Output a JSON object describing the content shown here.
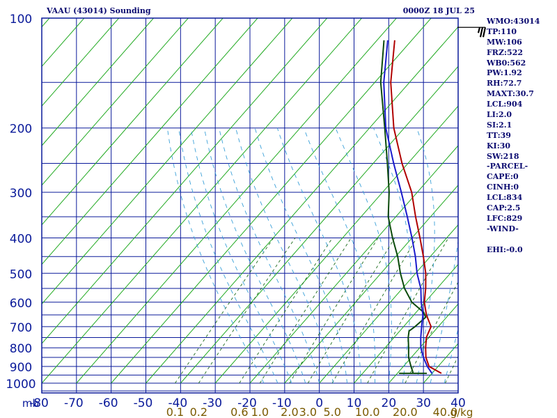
{
  "header": {
    "title": "VAAU (43014) Sounding",
    "timestamp": "0000Z 18 JUL 25"
  },
  "stats": [
    "WMO:43014",
    "TP:110",
    "MW:106",
    "FRZ:522",
    "WB0:562",
    "PW:1.92",
    "RH:72.7",
    "MAXT:30.7",
    "LCL:904",
    "LI:2.0",
    "SI:2.1",
    "TT:39",
    "KI:30",
    "SW:218",
    "-PARCEL-",
    "CAPE:0",
    "CINH:0",
    "LCL:834",
    "CAP:2.5",
    "LFC:829",
    "-WIND-",
    "",
    "EHI:-0.0"
  ],
  "colors": {
    "grid": "#0a1a9a",
    "isotherm": "#22aa22",
    "mixing": "#1a6a1a",
    "moist": "#3aa0d8",
    "temperature": "#b00000",
    "dewpoint": "#0b4a0b",
    "parcel": "#1a1acc",
    "wind": "#000000",
    "mixlabel": "#7a5a00"
  },
  "chart_data": {
    "type": "line",
    "title": "VAAU (43014) Sounding",
    "pressure_axis": {
      "unit": "mb",
      "ticks": [
        100,
        200,
        300,
        400,
        500,
        600,
        700,
        800,
        900,
        1000
      ],
      "range": [
        100,
        1050
      ],
      "scale": "log"
    },
    "temperature_axis": {
      "unit": "°C",
      "ticks": [
        -80,
        -70,
        -60,
        -50,
        -40,
        -30,
        -20,
        -10,
        0,
        10,
        20,
        30,
        40
      ],
      "range": [
        -80,
        40
      ]
    },
    "mixing_ratio_axis": {
      "unit": "g/kg",
      "ticks": [
        0.1,
        0.2,
        0.6,
        1.0,
        2.0,
        3.0,
        5.0,
        10.0,
        20.0,
        40.0
      ]
    },
    "series": [
      {
        "name": "temperature",
        "points": [
          [
            940,
            32.7
          ],
          [
            900,
            27.4
          ],
          [
            850,
            24.2
          ],
          [
            800,
            21.7
          ],
          [
            750,
            19.3
          ],
          [
            700,
            17.9
          ],
          [
            650,
            13.6
          ],
          [
            600,
            9.8
          ],
          [
            550,
            6.7
          ],
          [
            500,
            2.9
          ],
          [
            450,
            -2.0
          ],
          [
            400,
            -7.7
          ],
          [
            350,
            -14.3
          ],
          [
            300,
            -21.6
          ],
          [
            250,
            -31.7
          ],
          [
            200,
            -43.0
          ],
          [
            150,
            -55.4
          ],
          [
            115,
            -64.9
          ]
        ]
      },
      {
        "name": "dewpoint",
        "points": [
          [
            940,
            24.5
          ],
          [
            930,
            24.0
          ],
          [
            900,
            22.2
          ],
          [
            850,
            19.2
          ],
          [
            800,
            16.8
          ],
          [
            750,
            14.1
          ],
          [
            720,
            12.7
          ],
          [
            700,
            13.3
          ],
          [
            660,
            14.0
          ],
          [
            640,
            12.2
          ],
          [
            600,
            6.2
          ],
          [
            550,
            0.6
          ],
          [
            500,
            -4.4
          ],
          [
            450,
            -9.4
          ],
          [
            400,
            -15.6
          ],
          [
            350,
            -22.2
          ],
          [
            300,
            -28.1
          ],
          [
            250,
            -35.9
          ],
          [
            200,
            -45.6
          ],
          [
            150,
            -58.3
          ],
          [
            115,
            -68.0
          ]
        ]
      },
      {
        "name": "parcel",
        "points": [
          [
            940,
            30.0
          ],
          [
            900,
            26.9
          ],
          [
            850,
            23.5
          ],
          [
            800,
            20.3
          ],
          [
            750,
            17.7
          ],
          [
            700,
            15.2
          ],
          [
            650,
            12.6
          ],
          [
            600,
            8.9
          ],
          [
            550,
            5.3
          ],
          [
            500,
            0.4
          ],
          [
            450,
            -4.3
          ],
          [
            400,
            -10.0
          ],
          [
            350,
            -16.7
          ],
          [
            300,
            -24.6
          ],
          [
            250,
            -34.1
          ],
          [
            200,
            -45.3
          ],
          [
            150,
            -57.4
          ],
          [
            115,
            -66.9
          ]
        ]
      }
    ],
    "wind_barbs": [
      {
        "pressure": 106,
        "speed_kt": 25
      }
    ]
  }
}
